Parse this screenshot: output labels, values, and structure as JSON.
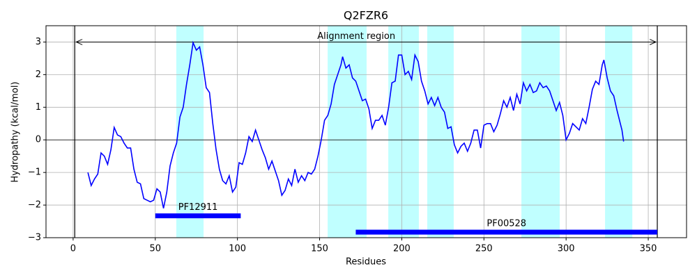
{
  "chart_data": {
    "type": "line",
    "title": "Q2FZR6",
    "x_label": "Residues",
    "y_label": "Hydropathy (kcal/mol)",
    "color": "#0000ff",
    "grid": true,
    "xlim": [
      -16.5,
      373.3
    ],
    "ylim": [
      -3,
      3.5
    ],
    "xticks": [
      0,
      50,
      100,
      150,
      200,
      250,
      300,
      350
    ],
    "yticks": [
      {
        "value": -3,
        "label": "−3"
      },
      {
        "value": -2,
        "label": "−2"
      },
      {
        "value": -1,
        "label": "−1"
      },
      0,
      1,
      2,
      3
    ],
    "hline": 0,
    "highlight_color": "#c0ffff",
    "highlight_regions": [
      [
        62.8,
        79.4
      ],
      [
        154.9,
        178.6
      ],
      [
        191.8,
        210.4
      ],
      [
        215.5,
        231.6
      ],
      [
        272.8,
        296.1
      ],
      [
        323.7,
        340.3
      ]
    ],
    "alignment_region": {
      "start": 1,
      "end": 355.5,
      "y": 3,
      "label": "Alignment region"
    },
    "domains": [
      {
        "name": "PF12911",
        "start": 50,
        "end": 102,
        "y": -2.33
      },
      {
        "name": "PF00528",
        "start": 172,
        "end": 355.5,
        "y": -2.83
      }
    ],
    "x": [
      9,
      11,
      13,
      15,
      17,
      19,
      21,
      23,
      25,
      27,
      29,
      31,
      33,
      35,
      37,
      39,
      41,
      43,
      45,
      47,
      49,
      51,
      53,
      55,
      57,
      59,
      61,
      63,
      65,
      67,
      69,
      71,
      73,
      75,
      77,
      79,
      81,
      83,
      85,
      87,
      89,
      91,
      93,
      95,
      97,
      99,
      101,
      103,
      105,
      107,
      109,
      111,
      113,
      115,
      117,
      119,
      121,
      123,
      125,
      127,
      129,
      131,
      133,
      135,
      137,
      139,
      141,
      143,
      145,
      147,
      149,
      151,
      153,
      155,
      157,
      159,
      161,
      163,
      164,
      166,
      168,
      170,
      172,
      174,
      176,
      178,
      180,
      182,
      184,
      186,
      188,
      190,
      192,
      194,
      196,
      198,
      200,
      202,
      204,
      206,
      208,
      210,
      212,
      214,
      216,
      218,
      220,
      222,
      224,
      226,
      228,
      230,
      232,
      234,
      236,
      238,
      240,
      242,
      244,
      246,
      248,
      250,
      252,
      254,
      256,
      258,
      260,
      262,
      264,
      266,
      268,
      270,
      272,
      274,
      276,
      278,
      280,
      282,
      284,
      286,
      288,
      290,
      292,
      294,
      296,
      298,
      300,
      302,
      304,
      306,
      308,
      310,
      312,
      314,
      316,
      318,
      320,
      322,
      323,
      325,
      327,
      329,
      331,
      333,
      334,
      335
    ],
    "values": [
      -1.0,
      -1.4,
      -1.2,
      -1.05,
      -0.4,
      -0.5,
      -0.75,
      -0.3,
      0.38,
      0.15,
      0.1,
      -0.1,
      -0.25,
      -0.25,
      -0.9,
      -1.3,
      -1.35,
      -1.8,
      -1.85,
      -1.9,
      -1.85,
      -1.5,
      -1.6,
      -2.1,
      -1.6,
      -0.8,
      -0.4,
      -0.1,
      0.7,
      1.0,
      1.7,
      2.3,
      2.98,
      2.75,
      2.85,
      2.3,
      1.6,
      1.45,
      0.5,
      -0.3,
      -0.9,
      -1.25,
      -1.35,
      -1.1,
      -1.6,
      -1.45,
      -0.7,
      -0.75,
      -0.4,
      0.1,
      -0.05,
      0.3,
      0.0,
      -0.3,
      -0.55,
      -0.9,
      -0.65,
      -0.95,
      -1.25,
      -1.7,
      -1.55,
      -1.2,
      -1.4,
      -0.9,
      -1.3,
      -1.1,
      -1.25,
      -1.0,
      -1.05,
      -0.9,
      -0.5,
      0.0,
      0.6,
      0.75,
      1.1,
      1.7,
      2.0,
      2.3,
      2.55,
      2.2,
      2.3,
      1.9,
      1.8,
      1.5,
      1.2,
      1.25,
      0.95,
      0.35,
      0.6,
      0.6,
      0.75,
      0.45,
      1.0,
      1.75,
      1.8,
      2.6,
      2.6,
      2.0,
      2.1,
      1.85,
      2.6,
      2.4,
      1.8,
      1.5,
      1.1,
      1.3,
      1.05,
      1.3,
      1.0,
      0.85,
      0.35,
      0.4,
      -0.15,
      -0.4,
      -0.2,
      -0.1,
      -0.35,
      -0.1,
      0.3,
      0.3,
      -0.25,
      0.45,
      0.5,
      0.5,
      0.25,
      0.45,
      0.8,
      1.2,
      1.0,
      1.3,
      0.9,
      1.4,
      1.1,
      1.75,
      1.5,
      1.7,
      1.45,
      1.5,
      1.75,
      1.6,
      1.65,
      1.5,
      1.2,
      0.9,
      1.15,
      0.75,
      0.0,
      0.2,
      0.5,
      0.4,
      0.3,
      0.65,
      0.5,
      1.0,
      1.55,
      1.8,
      1.7,
      2.3,
      2.45,
      1.9,
      1.5,
      1.35,
      0.9,
      0.5,
      0.3,
      -0.05
    ]
  }
}
